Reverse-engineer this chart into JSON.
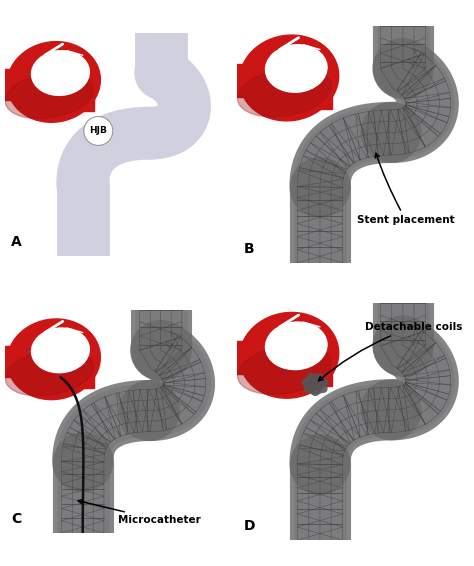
{
  "bg": "#ffffff",
  "vessel_color": "#d0d0df",
  "vessel_shadow": "#b8b8cc",
  "red_outer": "#cc1515",
  "red_dark": "#991010",
  "white": "#ffffff",
  "gray_inner": "#e8e8f0",
  "stent_gray": "#6a6a6a",
  "stent_line": "#404040",
  "coil_color": "#555555",
  "catheter_color": "#111111",
  "hjb_text": "HJB",
  "stent_label": "Stent placement",
  "micro_label": "Microcatheter",
  "coil_label": "Detachable coils",
  "panel_label_fs": 10,
  "annot_fs": 7.5,
  "label_A": "A",
  "label_B": "B",
  "label_C": "C",
  "label_D": "D"
}
